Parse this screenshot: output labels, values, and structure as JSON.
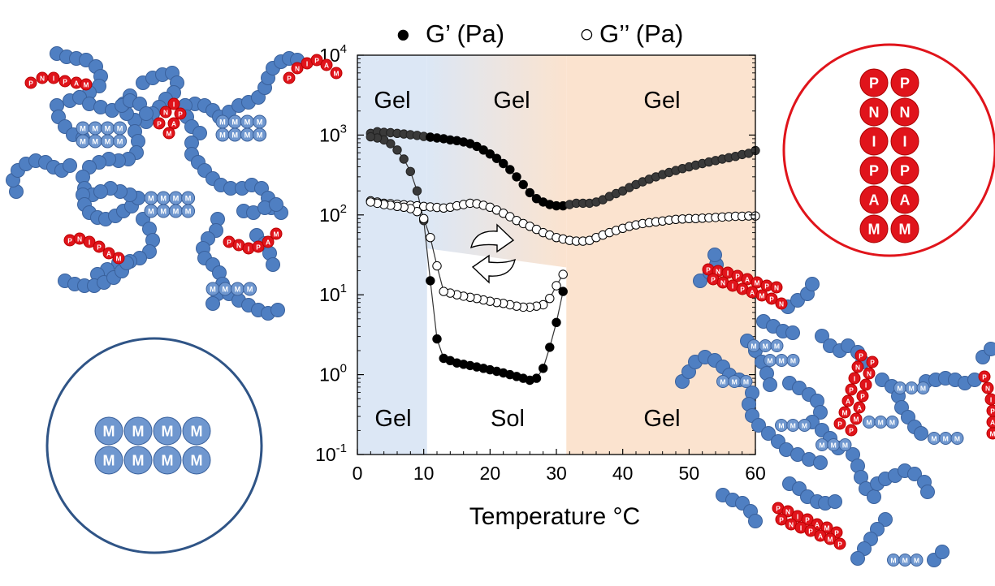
{
  "legend": {
    "filled_marker": "●",
    "filled_label": "G’ (Pa)",
    "open_marker": "○",
    "open_label": "G’’ (Pa)"
  },
  "zones": {
    "top": [
      "Gel",
      "Gel",
      "Gel"
    ],
    "bottom": [
      "Gel",
      "Sol",
      "Gel"
    ]
  },
  "colors": {
    "zone_cold": "#dce7f5",
    "zone_hot": "#fbe3cf",
    "bead_blue": "#4f7fc2",
    "bead_blue_stroke": "#3a619c",
    "bead_red": "#e0141b",
    "circle_red": "#e0141b",
    "circle_blue": "#2f5486"
  },
  "insets": {
    "red_stack_left": [
      "P",
      "N",
      "I",
      "P",
      "A",
      "M"
    ],
    "red_stack_right": [
      "P",
      "N",
      "I",
      "P",
      "A",
      "M"
    ],
    "blue_row_top": [
      "M",
      "M",
      "M",
      "M"
    ],
    "blue_row_bottom": [
      "M",
      "M",
      "M",
      "M"
    ],
    "pnipam_label": [
      "P",
      "N",
      "I",
      "P",
      "A",
      "M"
    ],
    "m_label": "M"
  },
  "chart_data": {
    "type": "scatter",
    "xlabel": "Temperature °C",
    "x_ticks": [
      "0",
      "10",
      "20",
      "30",
      "40",
      "50",
      "60"
    ],
    "xlim": [
      0,
      60
    ],
    "y_scale": "log",
    "ylim": [
      0.1,
      10000
    ],
    "y_ticks": [
      {
        "base": "10",
        "exp": "-1"
      },
      {
        "base": "10",
        "exp": "0"
      },
      {
        "base": "10",
        "exp": "1"
      },
      {
        "base": "10",
        "exp": "2"
      },
      {
        "base": "10",
        "exp": "3"
      },
      {
        "base": "10",
        "exp": "4"
      }
    ],
    "series": [
      {
        "name": "G’ (Pa) heating",
        "marker": "filled",
        "points": [
          [
            2,
            1050
          ],
          [
            3,
            1100
          ],
          [
            4,
            1080
          ],
          [
            5,
            1070
          ],
          [
            6,
            1050
          ],
          [
            7,
            1030
          ],
          [
            8,
            1010
          ],
          [
            9,
            990
          ],
          [
            10,
            960
          ],
          [
            11,
            940
          ],
          [
            12,
            920
          ],
          [
            13,
            900
          ],
          [
            14,
            870
          ],
          [
            15,
            850
          ],
          [
            16,
            820
          ],
          [
            17,
            780
          ],
          [
            18,
            720
          ],
          [
            19,
            650
          ],
          [
            20,
            580
          ],
          [
            21,
            510
          ],
          [
            22,
            440
          ],
          [
            23,
            370
          ],
          [
            24,
            300
          ],
          [
            25,
            240
          ],
          [
            26,
            190
          ],
          [
            27,
            160
          ],
          [
            28,
            145
          ],
          [
            29,
            135
          ],
          [
            30,
            130
          ],
          [
            31,
            130
          ],
          [
            32,
            135
          ],
          [
            33,
            140
          ],
          [
            34,
            140
          ],
          [
            35,
            140
          ],
          [
            36,
            145
          ],
          [
            37,
            155
          ],
          [
            38,
            170
          ],
          [
            39,
            185
          ],
          [
            40,
            200
          ],
          [
            41,
            220
          ],
          [
            42,
            240
          ],
          [
            43,
            260
          ],
          [
            44,
            280
          ],
          [
            45,
            300
          ],
          [
            46,
            320
          ],
          [
            47,
            340
          ],
          [
            48,
            360
          ],
          [
            49,
            380
          ],
          [
            50,
            400
          ],
          [
            51,
            420
          ],
          [
            52,
            440
          ],
          [
            53,
            460
          ],
          [
            54,
            480
          ],
          [
            55,
            500
          ],
          [
            56,
            520
          ],
          [
            57,
            540
          ],
          [
            58,
            570
          ],
          [
            59,
            590
          ],
          [
            60,
            640
          ]
        ]
      },
      {
        "name": "G’’ (Pa) heating",
        "marker": "open",
        "points": [
          [
            2,
            150
          ],
          [
            3,
            145
          ],
          [
            4,
            140
          ],
          [
            5,
            138
          ],
          [
            6,
            136
          ],
          [
            7,
            134
          ],
          [
            8,
            132
          ],
          [
            9,
            130
          ],
          [
            10,
            128
          ],
          [
            11,
            126
          ],
          [
            12,
            124
          ],
          [
            13,
            122
          ],
          [
            14,
            125
          ],
          [
            15,
            130
          ],
          [
            16,
            135
          ],
          [
            17,
            140
          ],
          [
            18,
            138
          ],
          [
            19,
            132
          ],
          [
            20,
            125
          ],
          [
            21,
            115
          ],
          [
            22,
            105
          ],
          [
            23,
            95
          ],
          [
            24,
            85
          ],
          [
            25,
            78
          ],
          [
            26,
            72
          ],
          [
            27,
            66
          ],
          [
            28,
            60
          ],
          [
            29,
            56
          ],
          [
            30,
            52
          ],
          [
            31,
            50
          ],
          [
            32,
            48
          ],
          [
            33,
            47
          ],
          [
            34,
            47
          ],
          [
            35,
            48
          ],
          [
            36,
            52
          ],
          [
            37,
            56
          ],
          [
            38,
            60
          ],
          [
            39,
            64
          ],
          [
            40,
            68
          ],
          [
            41,
            72
          ],
          [
            42,
            75
          ],
          [
            43,
            78
          ],
          [
            44,
            80
          ],
          [
            45,
            82
          ],
          [
            46,
            84
          ],
          [
            47,
            86
          ],
          [
            48,
            88
          ],
          [
            49,
            89
          ],
          [
            50,
            90
          ],
          [
            51,
            90
          ],
          [
            52,
            91
          ],
          [
            53,
            92
          ],
          [
            54,
            93
          ],
          [
            55,
            94
          ],
          [
            56,
            95
          ],
          [
            57,
            96
          ],
          [
            58,
            96
          ],
          [
            59,
            97
          ],
          [
            60,
            97
          ]
        ]
      },
      {
        "name": "G’ (Pa) cooling",
        "marker": "filled",
        "points": [
          [
            31,
            11
          ],
          [
            30,
            4.5
          ],
          [
            29,
            2.2
          ],
          [
            28,
            1.2
          ],
          [
            27,
            0.9
          ],
          [
            26,
            0.85
          ],
          [
            25,
            0.9
          ],
          [
            24,
            0.95
          ],
          [
            23,
            1.0
          ],
          [
            22,
            1.05
          ],
          [
            21,
            1.1
          ],
          [
            20,
            1.15
          ],
          [
            19,
            1.2
          ],
          [
            18,
            1.25
          ],
          [
            17,
            1.3
          ],
          [
            16,
            1.35
          ],
          [
            15,
            1.4
          ],
          [
            14,
            1.5
          ],
          [
            13,
            1.6
          ],
          [
            12,
            2.8
          ],
          [
            11,
            15
          ],
          [
            10,
            85
          ],
          [
            9,
            200
          ],
          [
            8,
            350
          ],
          [
            7,
            500
          ],
          [
            6,
            650
          ],
          [
            5,
            780
          ],
          [
            4,
            870
          ],
          [
            3,
            920
          ],
          [
            2,
            950
          ]
        ]
      },
      {
        "name": "G’’ (Pa) cooling",
        "marker": "open",
        "points": [
          [
            31,
            18
          ],
          [
            30,
            13
          ],
          [
            29,
            9
          ],
          [
            28,
            7.5
          ],
          [
            27,
            7.2
          ],
          [
            26,
            7.0
          ],
          [
            25,
            7.0
          ],
          [
            24,
            7.2
          ],
          [
            23,
            7.5
          ],
          [
            22,
            7.8
          ],
          [
            21,
            8.0
          ],
          [
            20,
            8.3
          ],
          [
            19,
            8.6
          ],
          [
            18,
            9.0
          ],
          [
            17,
            9.3
          ],
          [
            16,
            9.6
          ],
          [
            15,
            10
          ],
          [
            14,
            10.5
          ],
          [
            13,
            11
          ],
          [
            12,
            23
          ],
          [
            11,
            52
          ],
          [
            10,
            90
          ],
          [
            9,
            110
          ],
          [
            8,
            120
          ],
          [
            7,
            125
          ],
          [
            6,
            128
          ],
          [
            5,
            132
          ],
          [
            4,
            135
          ],
          [
            3,
            140
          ],
          [
            2,
            145
          ]
        ]
      }
    ]
  }
}
